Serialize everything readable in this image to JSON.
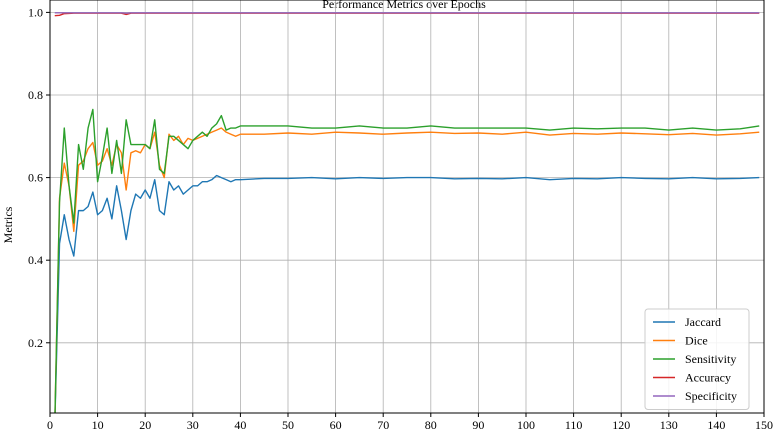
{
  "chart_data": {
    "type": "line",
    "title": "Performance Metrics over Epochs",
    "xlabel": "",
    "ylabel": "Metrics",
    "xlim": [
      0,
      150
    ],
    "ylim": [
      0.03,
      1.03
    ],
    "xticks": [
      0,
      10,
      20,
      30,
      40,
      50,
      60,
      70,
      80,
      90,
      100,
      110,
      120,
      130,
      140,
      150
    ],
    "yticks": [
      0.2,
      0.4,
      0.6,
      0.8,
      1.0
    ],
    "xtick_labels": [
      "0",
      "10",
      "20",
      "30",
      "40",
      "50",
      "60",
      "70",
      "80",
      "90",
      "100",
      "110",
      "120",
      "130",
      "140",
      "150"
    ],
    "ytick_labels": [
      "0.2",
      "0.4",
      "0.6",
      "0.8",
      "1.0"
    ],
    "grid": true,
    "legend_position": "bottom-right",
    "series": [
      {
        "name": "Jaccard",
        "color": "#1f77b4",
        "x": [
          1,
          2,
          3,
          4,
          5,
          6,
          7,
          8,
          9,
          10,
          11,
          12,
          13,
          14,
          15,
          16,
          17,
          18,
          19,
          20,
          21,
          22,
          23,
          24,
          25,
          26,
          27,
          28,
          29,
          30,
          31,
          32,
          33,
          34,
          35,
          36,
          37,
          38,
          39,
          40,
          45,
          50,
          55,
          60,
          65,
          70,
          75,
          80,
          85,
          90,
          95,
          100,
          105,
          110,
          115,
          120,
          125,
          130,
          135,
          140,
          145,
          149
        ],
        "values": [
          0.0,
          0.44,
          0.51,
          0.45,
          0.41,
          0.52,
          0.52,
          0.53,
          0.565,
          0.51,
          0.52,
          0.55,
          0.5,
          0.58,
          0.52,
          0.45,
          0.52,
          0.56,
          0.55,
          0.57,
          0.55,
          0.595,
          0.52,
          0.51,
          0.59,
          0.57,
          0.58,
          0.56,
          0.57,
          0.58,
          0.58,
          0.59,
          0.59,
          0.595,
          0.605,
          0.6,
          0.595,
          0.59,
          0.595,
          0.595,
          0.598,
          0.598,
          0.6,
          0.597,
          0.6,
          0.598,
          0.6,
          0.6,
          0.597,
          0.598,
          0.597,
          0.6,
          0.595,
          0.598,
          0.597,
          0.6,
          0.598,
          0.597,
          0.6,
          0.597,
          0.598,
          0.6
        ]
      },
      {
        "name": "Dice",
        "color": "#ff7f0e",
        "x": [
          1,
          2,
          3,
          4,
          5,
          6,
          7,
          8,
          9,
          10,
          11,
          12,
          13,
          14,
          15,
          16,
          17,
          18,
          19,
          20,
          21,
          22,
          23,
          24,
          25,
          26,
          27,
          28,
          29,
          30,
          31,
          32,
          33,
          34,
          35,
          36,
          37,
          38,
          39,
          40,
          45,
          50,
          55,
          60,
          65,
          70,
          75,
          80,
          85,
          90,
          95,
          100,
          105,
          110,
          115,
          120,
          125,
          130,
          135,
          140,
          145,
          149
        ],
        "values": [
          0.0,
          0.55,
          0.635,
          0.58,
          0.47,
          0.63,
          0.64,
          0.67,
          0.685,
          0.63,
          0.64,
          0.67,
          0.63,
          0.68,
          0.66,
          0.57,
          0.66,
          0.665,
          0.66,
          0.68,
          0.67,
          0.71,
          0.63,
          0.6,
          0.705,
          0.69,
          0.7,
          0.68,
          0.695,
          0.69,
          0.695,
          0.7,
          0.705,
          0.71,
          0.715,
          0.72,
          0.71,
          0.705,
          0.7,
          0.705,
          0.705,
          0.708,
          0.705,
          0.71,
          0.708,
          0.705,
          0.708,
          0.71,
          0.707,
          0.708,
          0.705,
          0.71,
          0.703,
          0.707,
          0.705,
          0.708,
          0.706,
          0.704,
          0.707,
          0.703,
          0.706,
          0.71
        ]
      },
      {
        "name": "Sensitivity",
        "color": "#2ca02c",
        "x": [
          1,
          2,
          3,
          4,
          5,
          6,
          7,
          8,
          9,
          10,
          11,
          12,
          13,
          14,
          15,
          16,
          17,
          18,
          19,
          20,
          21,
          22,
          23,
          24,
          25,
          26,
          27,
          28,
          29,
          30,
          31,
          32,
          33,
          34,
          35,
          36,
          37,
          38,
          39,
          40,
          45,
          50,
          55,
          60,
          65,
          70,
          75,
          80,
          85,
          90,
          95,
          100,
          105,
          110,
          115,
          120,
          125,
          130,
          135,
          140,
          145,
          149
        ],
        "values": [
          0.0,
          0.54,
          0.72,
          0.58,
          0.49,
          0.68,
          0.62,
          0.72,
          0.765,
          0.59,
          0.65,
          0.72,
          0.61,
          0.69,
          0.61,
          0.74,
          0.68,
          0.68,
          0.68,
          0.68,
          0.67,
          0.74,
          0.62,
          0.61,
          0.7,
          0.7,
          0.69,
          0.68,
          0.67,
          0.69,
          0.7,
          0.71,
          0.7,
          0.72,
          0.73,
          0.75,
          0.715,
          0.72,
          0.72,
          0.725,
          0.725,
          0.725,
          0.72,
          0.72,
          0.725,
          0.72,
          0.72,
          0.725,
          0.72,
          0.72,
          0.72,
          0.72,
          0.715,
          0.72,
          0.718,
          0.72,
          0.72,
          0.715,
          0.72,
          0.715,
          0.718,
          0.725
        ]
      },
      {
        "name": "Accuracy",
        "color": "#d62728",
        "x": [
          1,
          2,
          3,
          5,
          10,
          15,
          16,
          17,
          18,
          20,
          30,
          40,
          60,
          80,
          100,
          120,
          140,
          149
        ],
        "values": [
          0.992,
          0.993,
          0.997,
          0.998,
          0.998,
          0.998,
          0.995,
          0.998,
          0.998,
          0.998,
          0.998,
          0.998,
          0.998,
          0.998,
          0.998,
          0.998,
          0.998,
          0.998
        ]
      },
      {
        "name": "Specificity",
        "color": "#9467bd",
        "x": [
          1,
          2,
          3,
          5,
          10,
          15,
          16,
          17,
          18,
          20,
          30,
          40,
          60,
          80,
          100,
          120,
          140,
          149
        ],
        "values": [
          0.999,
          0.999,
          0.999,
          0.999,
          0.999,
          0.999,
          0.998,
          0.999,
          0.999,
          0.999,
          0.999,
          0.999,
          0.999,
          0.999,
          0.999,
          0.999,
          0.999,
          0.999
        ]
      }
    ]
  }
}
